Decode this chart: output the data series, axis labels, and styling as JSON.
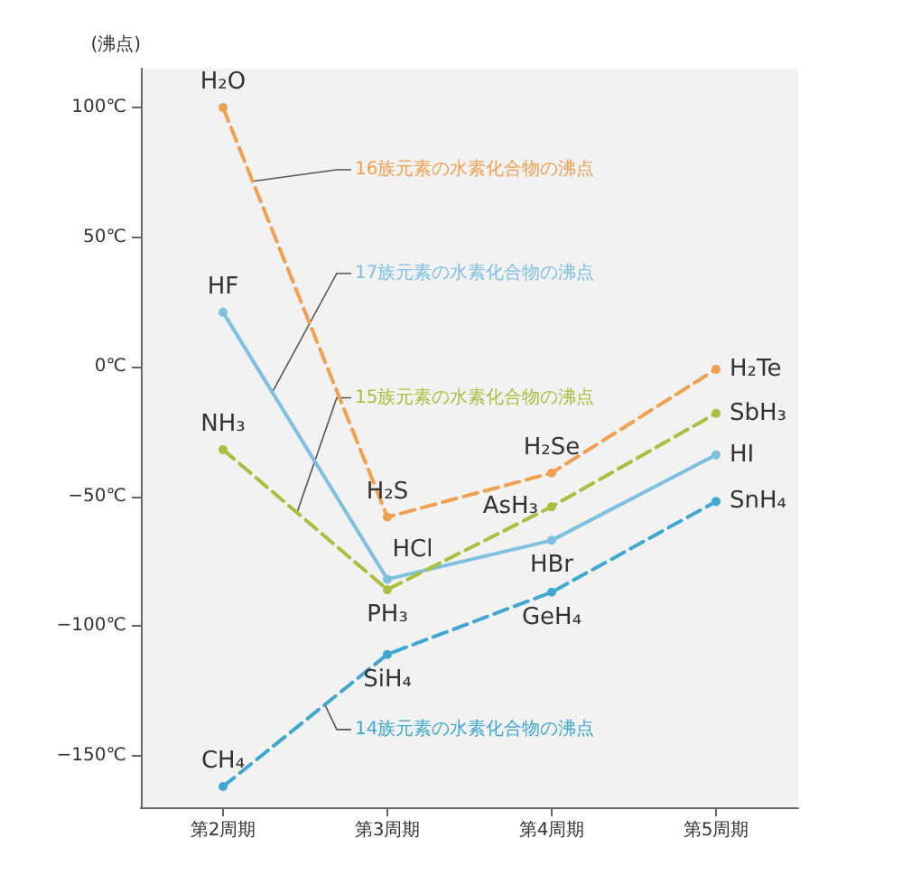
{
  "chart_data": {
    "type": "line",
    "ylabel": "(沸点)",
    "categories": [
      "第2周期",
      "第3周期",
      "第4周期",
      "第5周期"
    ],
    "series": [
      {
        "name": "16族元素の水素化合物の沸点",
        "color": "#f0a050",
        "line_style": "dashed",
        "values": [
          100,
          -58,
          -41,
          -1
        ],
        "value_labels": [
          "H₂O",
          "H₂S",
          "H₂Se",
          "H₂Te"
        ]
      },
      {
        "name": "17族元素の水素化合物の沸点",
        "color": "#7ec0e0",
        "line_style": "solid",
        "values": [
          21,
          -82,
          -67,
          -34
        ],
        "value_labels": [
          "HF",
          "HCl",
          "HBr",
          "HI"
        ]
      },
      {
        "name": "15族元素の水素化合物の沸点",
        "color": "#a8c040",
        "line_style": "dashed",
        "values": [
          -32,
          -86,
          -54,
          -18
        ],
        "value_labels": [
          "NH₃",
          "PH₃",
          "AsH₃",
          "SbH₃"
        ]
      },
      {
        "name": "14族元素の水素化合物の沸点",
        "color": "#40a8d0",
        "line_style": "dashed",
        "values": [
          -162,
          -111,
          -87,
          -52
        ],
        "value_labels": [
          "CH₄",
          "SiH₄",
          "GeH₄",
          "SnH₄"
        ]
      }
    ],
    "ylim": [
      -170,
      115
    ],
    "yticks": [
      {
        "value": -150,
        "label": "−150℃"
      },
      {
        "value": -100,
        "label": "−100℃"
      },
      {
        "value": -50,
        "label": "−50℃"
      },
      {
        "value": 0,
        "label": "0℃"
      },
      {
        "value": 50,
        "label": "50℃"
      },
      {
        "value": 100,
        "label": "100℃"
      }
    ],
    "grid": false,
    "legend": false,
    "marker": "circle"
  }
}
